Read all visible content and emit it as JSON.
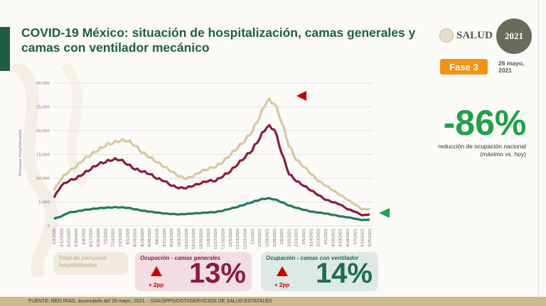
{
  "header": {
    "title": "COVID-19 México: situación de hospitalización, camas generales y camas con ventilador mecánico",
    "logo_text": "SALUD",
    "logo2021": "2021",
    "phase": "Fase 3",
    "date_line1": "26 mayo,",
    "date_line2": "2021"
  },
  "summary": {
    "value": "-86%",
    "caption_line1": "reducción de ocupación nacional",
    "caption_line2": "(máximo vs. hoy)",
    "color": "#20a04a"
  },
  "boxes": {
    "total": {
      "label": "Total de personas hospitalizadas",
      "color": "#d8c7a3"
    },
    "general": {
      "label": "Ocupación - camas generales",
      "change": "+ 2pp",
      "value": "13%",
      "color": "#8b1a45"
    },
    "ventilator": {
      "label": "Ocupación - camas con ventilador",
      "change": "+ 2pp",
      "value": "14%",
      "color": "#1f6b55"
    }
  },
  "footer": "FUENTE: RED IRAG, acumulado del 26 mayo, 2021. -  SSA/SPPS/DGTI/SERVICIOS DE SALUD ESTATALES",
  "chart_data": {
    "type": "line",
    "ylabel": "Personas hospitalizadas",
    "ylim": [
      0,
      30000
    ],
    "yticks": [
      "0",
      "5,000",
      "10,000",
      "15,000",
      "20,000",
      "25,000",
      "30,000"
    ],
    "grid": true,
    "x": [
      "5/3/2020",
      "5/12/2020",
      "5/21/2020",
      "5/30/2020",
      "6/8/2020",
      "6/17/2020",
      "6/26/2020",
      "7/5/2020",
      "7/14/2020",
      "7/23/2020",
      "8/1/2020",
      "8/10/2020",
      "8/19/2020",
      "8/28/2020",
      "9/6/2020",
      "9/15/2020",
      "9/24/2020",
      "10/3/2020",
      "10/12/2020",
      "10/21/2020",
      "10/30/2020",
      "11/8/2020",
      "11/17/2020",
      "11/26/2020",
      "12/5/2020",
      "12/14/2020",
      "12/23/2020",
      "1/1/2021",
      "1/10/2021",
      "1/19/2021",
      "1/28/2021",
      "2/6/2021",
      "2/15/2021",
      "2/24/2021",
      "3/5/2021",
      "3/14/2021",
      "3/23/2021",
      "4/1/2021",
      "4/10/2021",
      "4/19/2021",
      "4/28/2021",
      "5/7/2021",
      "5/16/2021",
      "5/25/2021"
    ],
    "series": [
      {
        "key": "total",
        "color": "#d8c7a3",
        "values": [
          7500,
          10000,
          11500,
          12500,
          14000,
          15000,
          16000,
          17000,
          17500,
          18000,
          18000,
          17000,
          15500,
          14500,
          13500,
          12500,
          11500,
          10500,
          10000,
          10500,
          11500,
          12000,
          12500,
          13500,
          15000,
          16500,
          18000,
          20000,
          23000,
          26500,
          26000,
          22000,
          17000,
          14000,
          12500,
          11000,
          9500,
          8500,
          7500,
          6500,
          5500,
          4500,
          3500,
          3500
        ]
      },
      {
        "key": "general",
        "color": "#8b1a45",
        "values": [
          6000,
          8500,
          9500,
          10000,
          11000,
          12000,
          13000,
          13500,
          14000,
          14000,
          13000,
          12000,
          11500,
          11000,
          10000,
          9500,
          8500,
          8000,
          8000,
          8500,
          9000,
          9500,
          9500,
          10500,
          11500,
          13000,
          14500,
          16000,
          18500,
          21000,
          20500,
          15500,
          11000,
          9500,
          8500,
          7500,
          6500,
          5500,
          5000,
          4500,
          3500,
          3000,
          2200,
          2400
        ]
      },
      {
        "key": "ventilator",
        "color": "#1f7a60",
        "values": [
          1500,
          2000,
          2800,
          3000,
          3300,
          3500,
          3700,
          3800,
          3900,
          3900,
          3800,
          3500,
          3200,
          3000,
          2800,
          2600,
          2500,
          2400,
          2500,
          2600,
          2700,
          2800,
          2900,
          3200,
          3600,
          4000,
          4500,
          5000,
          5500,
          5800,
          5600,
          5000,
          4300,
          3800,
          3400,
          3000,
          2800,
          2600,
          2300,
          2000,
          1800,
          1500,
          1200,
          1300
        ]
      }
    ],
    "markers": [
      {
        "series": "total",
        "shape": "triangle-left",
        "color": "#c00000"
      },
      {
        "series": "ventilator",
        "shape": "triangle-left",
        "color": "#20a04a"
      }
    ]
  }
}
